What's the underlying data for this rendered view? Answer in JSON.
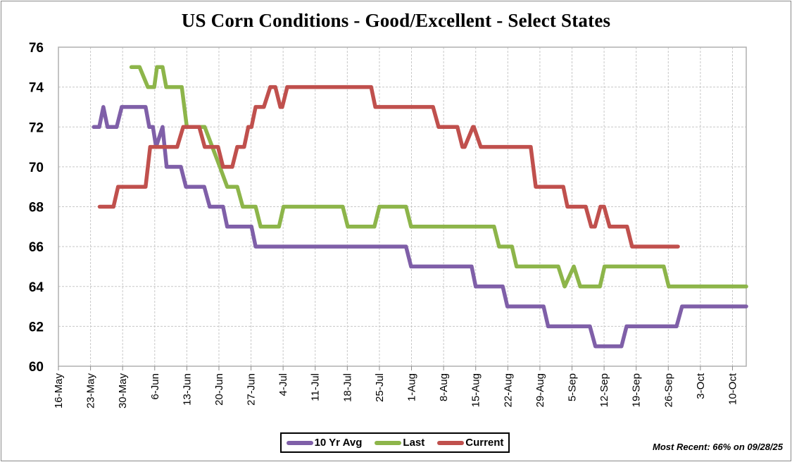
{
  "chart_data": {
    "type": "line",
    "title": "US Corn Conditions - Good/Excellent - Select States",
    "xlabel": "",
    "ylabel": "",
    "ylim": [
      60,
      76
    ],
    "yticks": [
      60,
      62,
      64,
      66,
      68,
      70,
      72,
      74,
      76
    ],
    "x_start_date": "16-May",
    "x_range_days": [
      0,
      150
    ],
    "xticks": [
      {
        "label": "16-May",
        "day": 0
      },
      {
        "label": "23-May",
        "day": 7
      },
      {
        "label": "30-May",
        "day": 14
      },
      {
        "label": "6-Jun",
        "day": 21
      },
      {
        "label": "13-Jun",
        "day": 28
      },
      {
        "label": "20-Jun",
        "day": 35
      },
      {
        "label": "27-Jun",
        "day": 42
      },
      {
        "label": "4-Jul",
        "day": 49
      },
      {
        "label": "11-Jul",
        "day": 56
      },
      {
        "label": "18-Jul",
        "day": 63
      },
      {
        "label": "25-Jul",
        "day": 70
      },
      {
        "label": "1-Aug",
        "day": 77
      },
      {
        "label": "8-Aug",
        "day": 84
      },
      {
        "label": "15-Aug",
        "day": 91
      },
      {
        "label": "22-Aug",
        "day": 98
      },
      {
        "label": "29-Aug",
        "day": 105
      },
      {
        "label": "5-Sep",
        "day": 112
      },
      {
        "label": "12-Sep",
        "day": 119
      },
      {
        "label": "19-Sep",
        "day": 126
      },
      {
        "label": "26-Sep",
        "day": 133
      },
      {
        "label": "3-Oct",
        "day": 140
      },
      {
        "label": "10-Oct",
        "day": 147
      }
    ],
    "grid": true,
    "legend_position": "bottom-center",
    "series": [
      {
        "name": "10 Yr Avg",
        "color": "#7F5FA8",
        "points": [
          [
            7.7,
            72
          ],
          [
            8.9,
            72
          ],
          [
            9.8,
            73
          ],
          [
            10.7,
            72
          ],
          [
            12.7,
            72
          ],
          [
            13.8,
            73
          ],
          [
            19.0,
            73
          ],
          [
            19.8,
            72
          ],
          [
            20.6,
            72
          ],
          [
            21.3,
            71
          ],
          [
            22.7,
            72
          ],
          [
            23.6,
            70
          ],
          [
            26.7,
            70
          ],
          [
            27.8,
            69
          ],
          [
            31.8,
            69
          ],
          [
            33.0,
            68
          ],
          [
            35.9,
            68
          ],
          [
            36.8,
            67
          ],
          [
            42.1,
            67
          ],
          [
            43.0,
            66
          ],
          [
            75.8,
            66
          ],
          [
            76.9,
            65
          ],
          [
            90.1,
            65
          ],
          [
            91.0,
            64
          ],
          [
            96.9,
            64
          ],
          [
            97.9,
            63
          ],
          [
            105.8,
            63
          ],
          [
            106.8,
            62
          ],
          [
            115.9,
            62
          ],
          [
            117.1,
            61
          ],
          [
            122.8,
            61
          ],
          [
            123.9,
            62
          ],
          [
            134.8,
            62
          ],
          [
            136.0,
            63
          ],
          [
            150,
            63
          ]
        ]
      },
      {
        "name": "Last",
        "color": "#8DB54A",
        "points": [
          [
            15.9,
            75
          ],
          [
            17.7,
            75
          ],
          [
            19.5,
            74
          ],
          [
            20.9,
            74
          ],
          [
            21.5,
            75
          ],
          [
            22.7,
            75
          ],
          [
            23.5,
            74
          ],
          [
            26.9,
            74
          ],
          [
            28.0,
            72
          ],
          [
            31.9,
            72
          ],
          [
            35.2,
            70
          ],
          [
            36.8,
            69
          ],
          [
            39.0,
            69
          ],
          [
            40.2,
            68
          ],
          [
            43.0,
            68
          ],
          [
            44.1,
            67
          ],
          [
            48.1,
            67
          ],
          [
            49.1,
            68
          ],
          [
            62.0,
            68
          ],
          [
            63.1,
            67
          ],
          [
            68.9,
            67
          ],
          [
            70.0,
            68
          ],
          [
            75.8,
            68
          ],
          [
            76.9,
            67
          ],
          [
            95.0,
            67
          ],
          [
            96.1,
            66
          ],
          [
            98.9,
            66
          ],
          [
            99.9,
            65
          ],
          [
            109.0,
            65
          ],
          [
            110.4,
            64
          ],
          [
            112.4,
            65
          ],
          [
            113.8,
            64
          ],
          [
            118.1,
            64
          ],
          [
            119.1,
            65
          ],
          [
            132.0,
            65
          ],
          [
            133.1,
            64
          ],
          [
            150,
            64
          ]
        ]
      },
      {
        "name": "Current",
        "color": "#C0504D",
        "points": [
          [
            9.0,
            68
          ],
          [
            12.0,
            68
          ],
          [
            13.0,
            69
          ],
          [
            19.0,
            69
          ],
          [
            20.0,
            71
          ],
          [
            25.9,
            71
          ],
          [
            27.2,
            72
          ],
          [
            30.7,
            72
          ],
          [
            31.9,
            71
          ],
          [
            34.8,
            71
          ],
          [
            35.9,
            70
          ],
          [
            37.9,
            70
          ],
          [
            39.0,
            71
          ],
          [
            40.5,
            71
          ],
          [
            41.4,
            72
          ],
          [
            42.1,
            72
          ],
          [
            43.0,
            73
          ],
          [
            44.8,
            73
          ],
          [
            46.2,
            74
          ],
          [
            47.3,
            74
          ],
          [
            48.4,
            73
          ],
          [
            48.8,
            73
          ],
          [
            49.9,
            74
          ],
          [
            68.2,
            74
          ],
          [
            69.1,
            73
          ],
          [
            81.7,
            73
          ],
          [
            82.9,
            72
          ],
          [
            87.0,
            72
          ],
          [
            88.1,
            71
          ],
          [
            88.6,
            71
          ],
          [
            90.4,
            72
          ],
          [
            90.6,
            72
          ],
          [
            92.1,
            71
          ],
          [
            103.0,
            71
          ],
          [
            104.1,
            69
          ],
          [
            110.1,
            69
          ],
          [
            111.0,
            68
          ],
          [
            115.0,
            68
          ],
          [
            116.2,
            67
          ],
          [
            117.0,
            67
          ],
          [
            118.2,
            68
          ],
          [
            119.0,
            68
          ],
          [
            120.2,
            67
          ],
          [
            124.0,
            67
          ],
          [
            125.1,
            66
          ],
          [
            135.1,
            66
          ]
        ]
      }
    ],
    "annotation": "Most Recent: 66% on 09/28/25"
  },
  "legend": {
    "items": [
      {
        "label": "10 Yr Avg",
        "color": "#7F5FA8"
      },
      {
        "label": "Last",
        "color": "#8DB54A"
      },
      {
        "label": "Current",
        "color": "#C0504D"
      }
    ]
  }
}
